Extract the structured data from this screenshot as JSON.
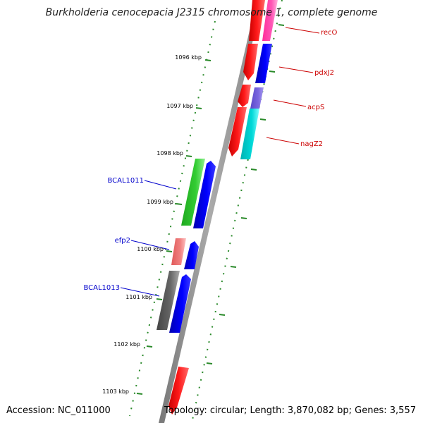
{
  "title": "Burkholderia cenocepacia J2315 chromosome 1, complete genome",
  "accession": "Accession: NC_011000",
  "topology": "Topology: circular; Length: 3,870,082 bp; Genes: 3,557",
  "ticks": [
    "1096 kbp",
    "1097 kbp",
    "1098 kbp",
    "1099 kbp",
    "1100 kbp",
    "1101 kbp",
    "1102 kbp",
    "1103 kbp"
  ],
  "genes": {
    "right": [
      "recO",
      "pdxJ2",
      "acpS",
      "nagZ2"
    ],
    "left": [
      "BCAL1011",
      "efp2",
      "BCAL1013"
    ]
  },
  "colors": {
    "label_right": "#cc0000",
    "label_left": "#0000cc",
    "tick": "#2a8a2a",
    "backbone": "#888888"
  }
}
